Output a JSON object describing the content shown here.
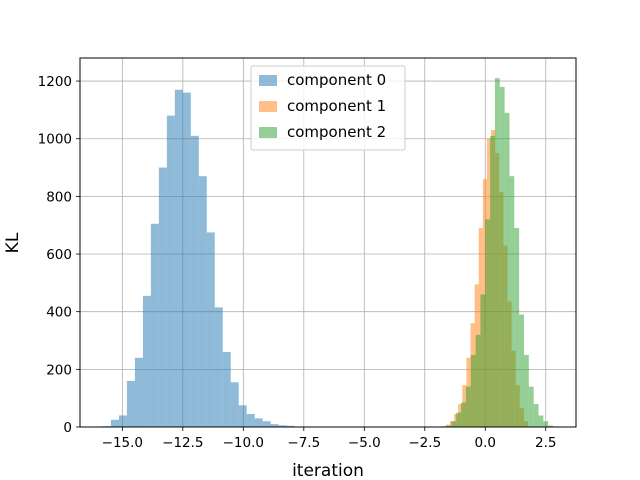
{
  "chart_data": {
    "type": "histogram",
    "title": "",
    "xlabel": "iteration",
    "ylabel": "KL",
    "xlim": [
      -16.75,
      3.75
    ],
    "ylim": [
      0,
      1280
    ],
    "x_ticks": [
      -15.0,
      -12.5,
      -10.0,
      -7.5,
      -5.0,
      -2.5,
      0.0,
      2.5
    ],
    "x_tick_labels": [
      "−15.0",
      "−12.5",
      "−10.0",
      "−7.5",
      "−5.0",
      "−2.5",
      "0.0",
      "2.5"
    ],
    "y_ticks": [
      0,
      200,
      400,
      600,
      800,
      1000,
      1200
    ],
    "y_tick_labels": [
      "0",
      "200",
      "400",
      "600",
      "800",
      "1000",
      "1200"
    ],
    "grid": true,
    "legend_position": "top-center",
    "series": [
      {
        "name": "component 0",
        "color": "#1f77b4",
        "opacity": 0.5,
        "bin_edges": [
          -15.8,
          -15.47,
          -15.14,
          -14.81,
          -14.48,
          -14.15,
          -13.82,
          -13.49,
          -13.16,
          -12.83,
          -12.5,
          -12.17,
          -11.84,
          -11.51,
          -11.18,
          -10.85,
          -10.52,
          -10.19,
          -9.86,
          -9.53,
          -9.2,
          -8.87,
          -8.54,
          -8.21,
          -7.88,
          -7.55
        ],
        "counts": [
          3,
          25,
          40,
          160,
          240,
          455,
          705,
          900,
          1080,
          1170,
          1160,
          1010,
          870,
          675,
          415,
          260,
          155,
          75,
          45,
          30,
          20,
          10,
          6,
          4,
          0
        ]
      },
      {
        "name": "component 1",
        "color": "#ff7f0e",
        "opacity": 0.5,
        "bin_edges": [
          -1.8,
          -1.63,
          -1.46,
          -1.29,
          -1.12,
          -0.95,
          -0.78,
          -0.61,
          -0.44,
          -0.27,
          -0.1,
          0.07,
          0.24,
          0.41,
          0.58,
          0.75,
          0.92,
          1.09,
          1.26,
          1.43,
          1.6,
          1.77
        ],
        "counts": [
          3,
          8,
          20,
          45,
          80,
          145,
          240,
          360,
          495,
          690,
          860,
          1000,
          1030,
          950,
          815,
          630,
          435,
          265,
          145,
          65,
          20
        ]
      },
      {
        "name": "component 2",
        "color": "#2ca02c",
        "opacity": 0.5,
        "bin_edges": [
          -1.6,
          -1.4,
          -1.2,
          -1.0,
          -0.8,
          -0.6,
          -0.4,
          -0.2,
          0.0,
          0.2,
          0.4,
          0.6,
          0.8,
          1.0,
          1.2,
          1.4,
          1.6,
          1.8,
          2.0,
          2.2,
          2.4,
          2.6,
          2.8,
          3.0
        ],
        "counts": [
          5,
          20,
          50,
          85,
          140,
          250,
          320,
          460,
          720,
          1010,
          1210,
          1180,
          1090,
          870,
          690,
          390,
          250,
          140,
          80,
          40,
          20,
          5,
          2
        ]
      }
    ]
  }
}
